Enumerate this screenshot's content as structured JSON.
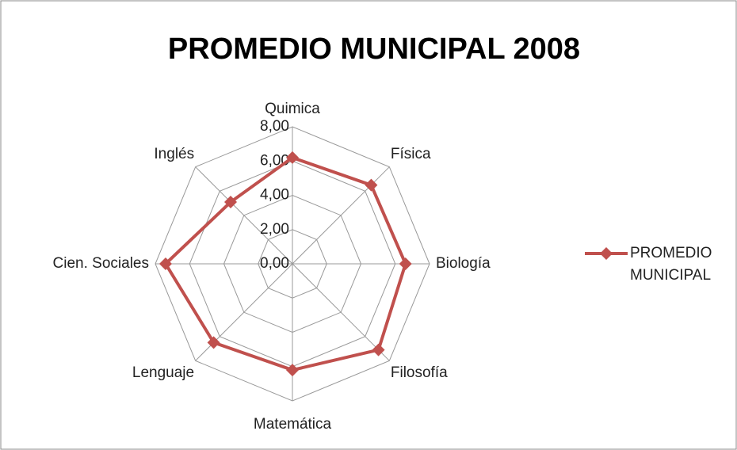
{
  "chart_data": {
    "type": "radar",
    "title": "PROMEDIO MUNICIPAL 2008",
    "categories": [
      "Quimica",
      "Física",
      "Biología",
      "Filosofía",
      "Matemática",
      "Lenguaje",
      "Cien. Sociales",
      "Inglés"
    ],
    "series": [
      {
        "name": "PROMEDIO MUNICIPAL",
        "color": "#c0504d",
        "values": [
          6.2,
          6.5,
          6.6,
          7.1,
          6.2,
          6.5,
          7.4,
          5.1
        ]
      }
    ],
    "ylim": [
      0,
      8
    ],
    "yticks": [
      {
        "value": 0,
        "label": "0,00"
      },
      {
        "value": 2,
        "label": "2,00"
      },
      {
        "value": 4,
        "label": "4,00"
      },
      {
        "value": 6,
        "label": "6,00"
      },
      {
        "value": 8,
        "label": "8,00"
      }
    ],
    "grid": true,
    "legend": "right"
  }
}
